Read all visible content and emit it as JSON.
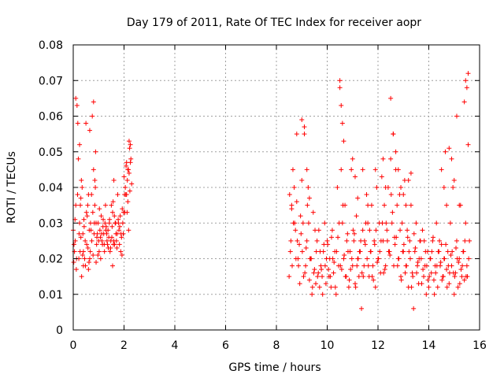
{
  "chart_data": {
    "type": "scatter",
    "title": "Day 179 of 2011, Rate Of TEC Index for receiver aopr",
    "xlabel": "GPS time / hours",
    "ylabel": "ROTI / TECUs",
    "xlim": [
      0,
      16
    ],
    "ylim": [
      0,
      0.08
    ],
    "xticks": [
      "0",
      "2",
      "4",
      "6",
      "8",
      "10",
      "12",
      "14",
      "16"
    ],
    "yticks": [
      "0",
      "0.01",
      "0.02",
      "0.03",
      "0.04",
      "0.05",
      "0.06",
      "0.07",
      "0.08"
    ],
    "grid": true,
    "marker": "+",
    "color": "#ff0000",
    "series": [
      {
        "name": "ROTI",
        "x": [
          0.0,
          0.05,
          0.1,
          0.15,
          0.2,
          0.25,
          0.3,
          0.35,
          0.4,
          0.45,
          0.5,
          0.55,
          0.6,
          0.65,
          0.7,
          0.75,
          0.8,
          0.85,
          0.9,
          0.95,
          1.0,
          1.05,
          1.1,
          1.15,
          1.2,
          1.25,
          1.3,
          1.35,
          1.4,
          1.45,
          1.5,
          1.55,
          1.6,
          1.65,
          1.7,
          1.75,
          1.8,
          1.85,
          1.9,
          1.95,
          2.0,
          2.05,
          2.1,
          2.15,
          2.2,
          2.25,
          2.3,
          0.02,
          0.08,
          0.12,
          0.18,
          0.22,
          0.28,
          0.33,
          0.38,
          0.42,
          0.48,
          0.52,
          0.58,
          0.62,
          0.68,
          0.72,
          0.78,
          0.82,
          0.88,
          0.92,
          0.98,
          1.02,
          1.08,
          1.12,
          1.18,
          1.22,
          1.28,
          1.32,
          1.38,
          1.42,
          1.48,
          1.52,
          1.58,
          1.62,
          1.68,
          1.72,
          1.78,
          1.82,
          1.88,
          1.92,
          1.98,
          2.02,
          2.08,
          2.12,
          2.18,
          2.22,
          0.03,
          0.07,
          0.13,
          0.17,
          0.23,
          0.27,
          0.32,
          0.37,
          0.43,
          0.47,
          0.53,
          0.57,
          0.63,
          0.67,
          0.73,
          0.77,
          0.83,
          0.87,
          0.93,
          0.97,
          1.03,
          1.07,
          1.13,
          1.17,
          1.23,
          1.27,
          1.33,
          1.37,
          1.43,
          1.47,
          1.53,
          1.57,
          1.63,
          1.67,
          1.73,
          1.77,
          1.83,
          1.87,
          1.93,
          1.97,
          2.03,
          2.07,
          2.13,
          2.17,
          2.23,
          2.27,
          0.1,
          0.25,
          0.3,
          0.4,
          0.6,
          0.65,
          0.8,
          0.85,
          0.9,
          1.55,
          1.6,
          2.1,
          2.15,
          2.2,
          2.25,
          8.5,
          8.55,
          8.6,
          8.65,
          8.7,
          8.75,
          8.8,
          8.85,
          8.9,
          8.95,
          9.0,
          9.05,
          9.1,
          9.15,
          9.2,
          9.25,
          9.3,
          9.35,
          9.4,
          9.45,
          9.5,
          9.55,
          9.6,
          9.65,
          9.7,
          9.75,
          9.8,
          9.85,
          9.9,
          9.95,
          10.0,
          10.05,
          10.1,
          10.15,
          10.2,
          10.25,
          10.3,
          10.35,
          10.4,
          10.45,
          10.5,
          10.55,
          10.6,
          10.65,
          10.7,
          10.75,
          10.8,
          10.85,
          10.9,
          10.95,
          11.0,
          11.05,
          11.1,
          11.15,
          11.2,
          11.25,
          11.3,
          11.35,
          11.4,
          11.45,
          11.5,
          11.55,
          11.6,
          11.65,
          11.7,
          11.75,
          11.8,
          11.85,
          11.9,
          11.95,
          12.0,
          12.05,
          12.1,
          12.15,
          12.2,
          12.25,
          12.3,
          12.35,
          12.4,
          12.45,
          12.5,
          12.55,
          12.6,
          12.65,
          12.7,
          12.75,
          12.8,
          12.85,
          12.9,
          12.95,
          13.0,
          13.05,
          13.1,
          13.15,
          13.2,
          13.25,
          13.3,
          13.35,
          13.4,
          13.45,
          13.5,
          13.55,
          13.6,
          13.65,
          13.7,
          13.75,
          13.8,
          13.85,
          13.9,
          13.95,
          14.0,
          14.05,
          14.1,
          14.15,
          14.2,
          14.25,
          14.3,
          14.35,
          14.4,
          14.45,
          14.5,
          14.55,
          14.6,
          14.65,
          14.7,
          14.75,
          14.8,
          14.85,
          14.9,
          14.95,
          15.0,
          15.05,
          15.1,
          15.15,
          15.2,
          15.25,
          15.3,
          15.35,
          15.4,
          15.45,
          15.5,
          15.55,
          15.6,
          8.52,
          8.62,
          8.72,
          8.82,
          8.92,
          9.02,
          9.12,
          9.22,
          9.32,
          9.42,
          9.52,
          9.62,
          9.72,
          9.82,
          9.92,
          10.02,
          10.12,
          10.22,
          10.32,
          10.42,
          10.52,
          10.62,
          10.72,
          10.82,
          10.92,
          11.02,
          11.12,
          11.22,
          11.32,
          11.42,
          11.52,
          11.62,
          11.72,
          11.82,
          11.92,
          12.02,
          12.12,
          12.22,
          12.32,
          12.42,
          12.52,
          12.62,
          12.72,
          12.82,
          12.92,
          13.02,
          13.12,
          13.22,
          13.32,
          13.42,
          13.52,
          13.62,
          13.72,
          13.82,
          13.92,
          14.02,
          14.12,
          14.22,
          14.32,
          14.42,
          14.52,
          14.62,
          14.72,
          14.82,
          14.92,
          15.02,
          15.12,
          15.22,
          15.32,
          15.42,
          15.52,
          8.57,
          8.67,
          8.77,
          8.87,
          8.97,
          9.07,
          9.17,
          9.27,
          9.37,
          9.47,
          9.57,
          9.67,
          9.77,
          9.87,
          9.97,
          10.07,
          10.17,
          10.27,
          10.37,
          10.47,
          10.57,
          10.67,
          10.77,
          10.87,
          10.97,
          11.07,
          11.17,
          11.27,
          11.37,
          11.47,
          11.57,
          11.67,
          11.77,
          11.87,
          11.97,
          12.07,
          12.17,
          12.27,
          12.37,
          12.47,
          12.57,
          12.67,
          12.77,
          12.87,
          12.97,
          13.07,
          13.17,
          13.27,
          13.37,
          13.47,
          13.57,
          13.67,
          13.77,
          13.87,
          13.97,
          14.07,
          14.17,
          14.27,
          14.37,
          14.47,
          14.57,
          14.67,
          14.77,
          14.87,
          14.97,
          15.07,
          15.17,
          15.27,
          15.37,
          15.47,
          15.57,
          8.6,
          8.8,
          9.0,
          9.1,
          9.2,
          9.3,
          10.5,
          10.55,
          10.6,
          10.65,
          11.0,
          11.1,
          11.2,
          11.4,
          11.6,
          11.9,
          12.2,
          12.3,
          12.5,
          12.6,
          12.7,
          12.8,
          12.9,
          13.0,
          13.1,
          13.2,
          13.3,
          14.5,
          14.6,
          14.7,
          14.8,
          14.9,
          15.0,
          15.1,
          15.2,
          15.4,
          15.45,
          15.5,
          15.55
        ],
        "y": [
          0.028,
          0.022,
          0.035,
          0.063,
          0.048,
          0.03,
          0.026,
          0.04,
          0.022,
          0.02,
          0.058,
          0.032,
          0.038,
          0.056,
          0.028,
          0.06,
          0.045,
          0.035,
          0.03,
          0.027,
          0.025,
          0.028,
          0.032,
          0.024,
          0.027,
          0.03,
          0.029,
          0.024,
          0.026,
          0.022,
          0.035,
          0.033,
          0.042,
          0.03,
          0.025,
          0.038,
          0.028,
          0.032,
          0.026,
          0.03,
          0.043,
          0.04,
          0.047,
          0.036,
          0.044,
          0.052,
          0.041,
          0.019,
          0.025,
          0.017,
          0.058,
          0.02,
          0.035,
          0.015,
          0.027,
          0.031,
          0.018,
          0.033,
          0.023,
          0.019,
          0.03,
          0.038,
          0.021,
          0.027,
          0.05,
          0.024,
          0.03,
          0.022,
          0.02,
          0.027,
          0.031,
          0.024,
          0.028,
          0.027,
          0.023,
          0.03,
          0.025,
          0.026,
          0.024,
          0.032,
          0.027,
          0.023,
          0.03,
          0.024,
          0.027,
          0.021,
          0.033,
          0.038,
          0.046,
          0.033,
          0.028,
          0.051,
          0.024,
          0.031,
          0.02,
          0.038,
          0.027,
          0.022,
          0.042,
          0.021,
          0.029,
          0.025,
          0.024,
          0.035,
          0.028,
          0.022,
          0.025,
          0.033,
          0.03,
          0.04,
          0.026,
          0.021,
          0.034,
          0.026,
          0.025,
          0.029,
          0.022,
          0.035,
          0.025,
          0.028,
          0.031,
          0.023,
          0.029,
          0.036,
          0.024,
          0.03,
          0.027,
          0.031,
          0.029,
          0.022,
          0.034,
          0.027,
          0.033,
          0.038,
          0.042,
          0.045,
          0.039,
          0.048,
          0.065,
          0.052,
          0.037,
          0.018,
          0.017,
          0.02,
          0.064,
          0.042,
          0.019,
          0.018,
          0.025,
          0.038,
          0.045,
          0.053,
          0.047,
          0.015,
          0.022,
          0.034,
          0.045,
          0.04,
          0.028,
          0.036,
          0.02,
          0.024,
          0.032,
          0.059,
          0.03,
          0.055,
          0.018,
          0.025,
          0.04,
          0.014,
          0.02,
          0.01,
          0.033,
          0.017,
          0.013,
          0.025,
          0.016,
          0.012,
          0.018,
          0.015,
          0.022,
          0.03,
          0.013,
          0.025,
          0.017,
          0.02,
          0.012,
          0.028,
          0.016,
          0.022,
          0.01,
          0.04,
          0.018,
          0.07,
          0.045,
          0.03,
          0.02,
          0.035,
          0.015,
          0.027,
          0.012,
          0.022,
          0.045,
          0.018,
          0.025,
          0.013,
          0.032,
          0.02,
          0.015,
          0.022,
          0.006,
          0.028,
          0.018,
          0.024,
          0.038,
          0.03,
          0.015,
          0.022,
          0.035,
          0.018,
          0.025,
          0.012,
          0.04,
          0.02,
          0.03,
          0.016,
          0.043,
          0.025,
          0.035,
          0.018,
          0.028,
          0.04,
          0.022,
          0.048,
          0.03,
          0.055,
          0.026,
          0.045,
          0.035,
          0.02,
          0.038,
          0.015,
          0.03,
          0.022,
          0.042,
          0.018,
          0.028,
          0.012,
          0.025,
          0.035,
          0.016,
          0.006,
          0.022,
          0.03,
          0.018,
          0.013,
          0.025,
          0.02,
          0.028,
          0.015,
          0.018,
          0.01,
          0.022,
          0.012,
          0.02,
          0.016,
          0.025,
          0.014,
          0.018,
          0.03,
          0.012,
          0.022,
          0.018,
          0.024,
          0.015,
          0.02,
          0.05,
          0.017,
          0.022,
          0.013,
          0.03,
          0.018,
          0.04,
          0.01,
          0.016,
          0.025,
          0.012,
          0.02,
          0.035,
          0.015,
          0.022,
          0.014,
          0.03,
          0.018,
          0.072,
          0.025,
          0.038,
          0.018,
          0.03,
          0.025,
          0.013,
          0.022,
          0.016,
          0.035,
          0.02,
          0.012,
          0.028,
          0.015,
          0.022,
          0.01,
          0.018,
          0.024,
          0.015,
          0.02,
          0.012,
          0.026,
          0.018,
          0.035,
          0.015,
          0.022,
          0.017,
          0.028,
          0.012,
          0.02,
          0.025,
          0.015,
          0.03,
          0.018,
          0.022,
          0.014,
          0.028,
          0.02,
          0.025,
          0.016,
          0.03,
          0.022,
          0.038,
          0.018,
          0.026,
          0.02,
          0.014,
          0.024,
          0.018,
          0.022,
          0.012,
          0.027,
          0.016,
          0.02,
          0.013,
          0.025,
          0.018,
          0.015,
          0.022,
          0.01,
          0.018,
          0.025,
          0.014,
          0.02,
          0.012,
          0.016,
          0.022,
          0.015,
          0.02,
          0.013,
          0.018,
          0.025,
          0.015,
          0.025,
          0.03,
          0.02,
          0.018,
          0.027,
          0.015,
          0.023,
          0.03,
          0.02,
          0.016,
          0.022,
          0.028,
          0.017,
          0.024,
          0.02,
          0.015,
          0.026,
          0.019,
          0.022,
          0.03,
          0.017,
          0.021,
          0.025,
          0.014,
          0.02,
          0.027,
          0.018,
          0.022,
          0.016,
          0.025,
          0.02,
          0.028,
          0.015,
          0.024,
          0.019,
          0.022,
          0.03,
          0.017,
          0.025,
          0.021,
          0.033,
          0.024,
          0.018,
          0.028,
          0.022,
          0.016,
          0.026,
          0.02,
          0.015,
          0.023,
          0.019,
          0.025,
          0.017,
          0.022,
          0.014,
          0.02,
          0.026,
          0.016,
          0.022,
          0.019,
          0.015,
          0.024,
          0.018,
          0.021,
          0.016,
          0.023,
          0.019,
          0.017,
          0.022,
          0.015,
          0.02,
          0.035,
          0.055,
          0.042,
          0.057,
          0.045,
          0.037,
          0.068,
          0.063,
          0.058,
          0.053,
          0.048,
          0.043,
          0.037,
          0.045,
          0.035,
          0.045,
          0.048,
          0.04,
          0.065,
          0.055,
          0.05,
          0.045,
          0.04,
          0.038,
          0.035,
          0.042,
          0.044,
          0.045,
          0.04,
          0.035,
          0.051,
          0.048,
          0.042,
          0.06,
          0.035,
          0.064,
          0.07,
          0.068,
          0.052
        ]
      }
    ]
  }
}
